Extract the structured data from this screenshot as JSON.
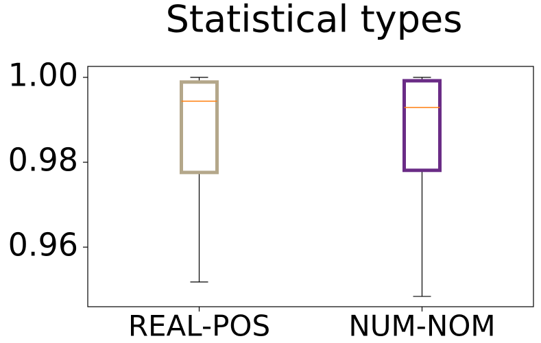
{
  "chart_data": {
    "type": "box",
    "title": "Statistical types",
    "categories": [
      "REAL-POS",
      "NUM-NOM"
    ],
    "boxes": [
      {
        "color": "#b4a78a",
        "low": 0.9518,
        "q1": 0.9776,
        "median": 0.9944,
        "q3": 0.9989,
        "high": 1.0
      },
      {
        "color": "#6a2c86",
        "low": 0.9484,
        "q1": 0.9781,
        "median": 0.9929,
        "q3": 0.9992,
        "high": 1.0
      }
    ],
    "median_color": "#ff7f0e",
    "ylim": [
      0.94597,
      1.00258
    ],
    "yticks": [
      {
        "value": 0.96,
        "label": "0.96"
      },
      {
        "value": 0.98,
        "label": "0.98"
      },
      {
        "value": 1.0,
        "label": "1.00"
      }
    ],
    "grid": false
  }
}
